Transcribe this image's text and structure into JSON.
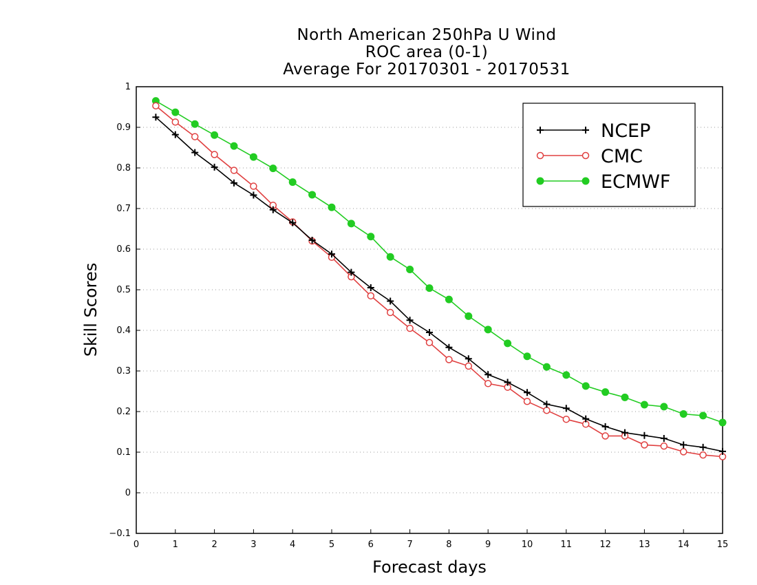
{
  "chart_data": {
    "type": "line",
    "title": [
      "North American 250hPa U Wind",
      "ROC area (0-1)",
      "Average For 20170301 - 20170531"
    ],
    "xlabel": "Forecast days",
    "ylabel": "Skill Scores",
    "xlim": [
      0,
      15
    ],
    "ylim": [
      -0.1,
      1
    ],
    "xticks": [
      "0",
      "1",
      "2",
      "3",
      "4",
      "5",
      "6",
      "7",
      "8",
      "9",
      "10",
      "11",
      "12",
      "13",
      "14",
      "15"
    ],
    "yticks": [
      "−0.1",
      "0",
      "0.1",
      "0.2",
      "0.3",
      "0.4",
      "0.5",
      "0.6",
      "0.7",
      "0.8",
      "0.9",
      "1"
    ],
    "grid": "horizontal dotted",
    "legend_position": "top-right",
    "x": [
      0.5,
      1,
      1.5,
      2,
      2.5,
      3,
      3.5,
      4,
      4.5,
      5,
      5.5,
      6,
      6.5,
      7,
      7.5,
      8,
      8.5,
      9,
      9.5,
      10,
      10.5,
      11,
      11.5,
      12,
      12.5,
      13,
      13.5,
      14,
      14.5,
      15
    ],
    "series": [
      {
        "name": "NCEP",
        "color": "#000000",
        "marker": "plus",
        "values": [
          0.925,
          0.882,
          0.838,
          0.802,
          0.763,
          0.733,
          0.697,
          0.665,
          0.622,
          0.588,
          0.543,
          0.505,
          0.472,
          0.425,
          0.395,
          0.358,
          0.33,
          0.291,
          0.272,
          0.247,
          0.218,
          0.208,
          0.182,
          0.163,
          0.148,
          0.141,
          0.134,
          0.118,
          0.112,
          0.102
        ]
      },
      {
        "name": "CMC",
        "color": "#e04040",
        "marker": "open-circle",
        "values": [
          0.953,
          0.913,
          0.877,
          0.833,
          0.794,
          0.755,
          0.708,
          0.667,
          0.62,
          0.58,
          0.532,
          0.485,
          0.444,
          0.405,
          0.37,
          0.328,
          0.312,
          0.269,
          0.26,
          0.225,
          0.203,
          0.181,
          0.169,
          0.14,
          0.14,
          0.118,
          0.115,
          0.101,
          0.093,
          0.089
        ]
      },
      {
        "name": "ECMWF",
        "color": "#22cc22",
        "marker": "filled-circle",
        "values": [
          0.965,
          0.937,
          0.908,
          0.881,
          0.854,
          0.827,
          0.799,
          0.765,
          0.734,
          0.703,
          0.663,
          0.631,
          0.581,
          0.55,
          0.504,
          0.476,
          0.435,
          0.402,
          0.368,
          0.336,
          0.31,
          0.29,
          0.263,
          0.248,
          0.235,
          0.217,
          0.212,
          0.194,
          0.19,
          0.173
        ]
      }
    ]
  }
}
